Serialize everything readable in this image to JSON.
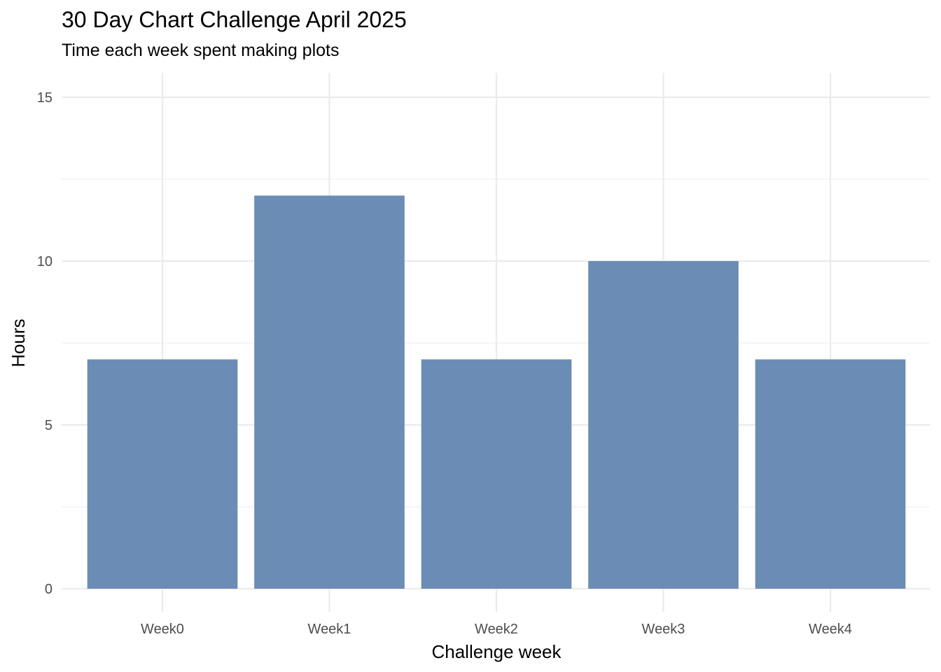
{
  "chart_data": {
    "type": "bar",
    "title": "30 Day Chart Challenge April 2025",
    "subtitle": "Time each week spent making plots",
    "xlabel": "Challenge week",
    "ylabel": "Hours",
    "categories": [
      "Week0",
      "Week1",
      "Week2",
      "Week3",
      "Week4"
    ],
    "values": [
      7,
      12,
      7,
      10,
      7
    ],
    "ylim": [
      0,
      15.75
    ],
    "y_ticks": [
      0,
      5,
      10,
      15
    ],
    "y_tick_labels": [
      "0",
      "5",
      "10",
      "15"
    ],
    "grid": true,
    "legend": "none",
    "bar_color": "#6b8cb5",
    "grid_color": "#ebebeb"
  }
}
